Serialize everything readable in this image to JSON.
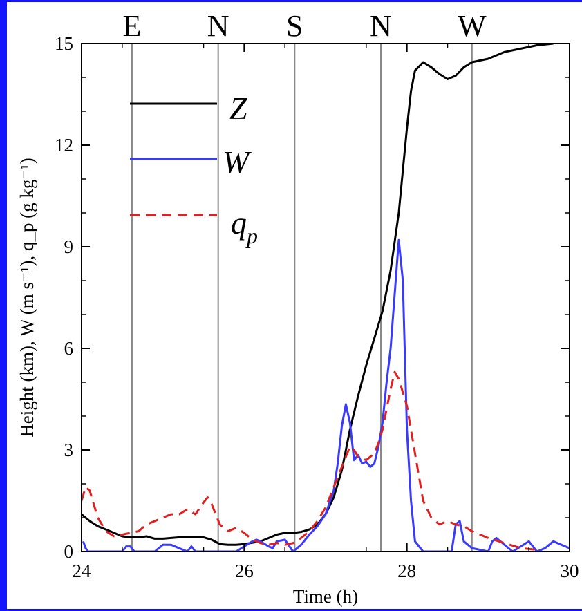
{
  "colors": {
    "frame": "#1414ff",
    "Z": "#000000",
    "W": "#3a3aff",
    "qp": "#e02020",
    "marker_lines": "#888888"
  },
  "chart_data": {
    "type": "line",
    "xlabel": "Time (h)",
    "ylabel": "Height (km), W (m s⁻¹), q_p (g kg⁻¹)",
    "xlim": [
      24,
      30
    ],
    "ylim": [
      0,
      15
    ],
    "xticks": [
      24,
      26,
      28,
      30
    ],
    "yticks": [
      0,
      3,
      6,
      9,
      12,
      15
    ],
    "grid": false,
    "legend_position": "top-left",
    "direction_markers": [
      {
        "label": "E",
        "x": 24.62
      },
      {
        "label": "N",
        "x": 25.68
      },
      {
        "label": "S",
        "x": 26.62
      },
      {
        "label": "N",
        "x": 27.68
      },
      {
        "label": "W",
        "x": 28.8
      }
    ],
    "series": [
      {
        "name": "Z",
        "style": "solid",
        "x": [
          24.0,
          24.1,
          24.2,
          24.3,
          24.4,
          24.5,
          24.6,
          24.7,
          24.8,
          24.9,
          25.0,
          25.2,
          25.4,
          25.5,
          25.6,
          25.7,
          25.8,
          25.9,
          26.0,
          26.2,
          26.4,
          26.5,
          26.6,
          26.7,
          26.8,
          26.9,
          27.0,
          27.1,
          27.2,
          27.3,
          27.4,
          27.5,
          27.6,
          27.7,
          27.8,
          27.9,
          28.0,
          28.05,
          28.1,
          28.2,
          28.3,
          28.4,
          28.5,
          28.6,
          28.7,
          28.8,
          29.0,
          29.2,
          29.4,
          29.6,
          29.8
        ],
        "values": [
          1.1,
          0.9,
          0.75,
          0.65,
          0.55,
          0.45,
          0.42,
          0.42,
          0.45,
          0.38,
          0.38,
          0.42,
          0.42,
          0.42,
          0.35,
          0.22,
          0.2,
          0.2,
          0.22,
          0.3,
          0.5,
          0.55,
          0.55,
          0.58,
          0.65,
          0.8,
          1.1,
          1.6,
          2.4,
          3.6,
          4.6,
          5.5,
          6.3,
          7.1,
          8.3,
          10.0,
          12.5,
          13.6,
          14.2,
          14.45,
          14.3,
          14.1,
          13.95,
          14.05,
          14.3,
          14.45,
          14.55,
          14.75,
          14.85,
          14.95,
          15.0
        ]
      },
      {
        "name": "W",
        "style": "solid",
        "x": [
          24.02,
          24.05,
          24.08,
          24.5,
          24.55,
          24.6,
          24.65,
          24.9,
          25.0,
          25.1,
          25.3,
          25.35,
          25.4,
          25.7,
          25.9,
          26.0,
          26.1,
          26.15,
          26.2,
          26.3,
          26.35,
          26.4,
          26.5,
          26.6,
          26.7,
          26.8,
          26.9,
          27.0,
          27.1,
          27.15,
          27.2,
          27.25,
          27.3,
          27.35,
          27.4,
          27.45,
          27.5,
          27.55,
          27.6,
          27.65,
          27.7,
          27.75,
          27.8,
          27.85,
          27.9,
          27.95,
          28.0,
          28.05,
          28.1,
          28.2,
          28.3,
          28.55,
          28.6,
          28.65,
          28.7,
          28.8,
          29.0,
          29.05,
          29.1,
          29.3,
          29.4,
          29.5,
          29.6,
          29.7,
          29.8,
          29.9,
          30.0
        ],
        "values": [
          0.3,
          0.1,
          0.0,
          0.0,
          0.15,
          0.15,
          0.0,
          0.0,
          0.2,
          0.2,
          0.0,
          0.15,
          0.0,
          0.0,
          0.0,
          0.15,
          0.3,
          0.35,
          0.3,
          0.15,
          0.1,
          0.3,
          0.35,
          0.0,
          0.2,
          0.5,
          0.75,
          1.1,
          1.8,
          2.6,
          3.7,
          4.35,
          3.8,
          2.7,
          2.85,
          2.6,
          2.65,
          2.5,
          2.6,
          3.1,
          3.8,
          5.0,
          6.0,
          7.6,
          9.2,
          8.0,
          3.6,
          1.5,
          0.3,
          0.0,
          0.0,
          0.0,
          0.8,
          0.9,
          0.3,
          0.1,
          0.0,
          0.3,
          0.4,
          0.0,
          0.15,
          0.3,
          0.0,
          0.1,
          0.3,
          0.2,
          0.1
        ]
      },
      {
        "name": "qp",
        "label": "q_p",
        "style": "dashed",
        "x": [
          24.0,
          24.05,
          24.1,
          24.15,
          24.2,
          24.3,
          24.4,
          24.5,
          24.6,
          24.7,
          24.8,
          24.9,
          25.0,
          25.1,
          25.2,
          25.3,
          25.4,
          25.5,
          25.55,
          25.6,
          25.65,
          25.7,
          25.8,
          25.9,
          26.0,
          26.1,
          26.2,
          26.3,
          26.4,
          26.5,
          26.6,
          26.7,
          26.8,
          26.9,
          27.0,
          27.1,
          27.2,
          27.3,
          27.35,
          27.4,
          27.5,
          27.6,
          27.65,
          27.7,
          27.8,
          27.85,
          27.9,
          28.0,
          28.1,
          28.2,
          28.3,
          28.4,
          28.5,
          28.6,
          28.7,
          28.8,
          29.0,
          29.2,
          29.4,
          29.6
        ],
        "values": [
          1.5,
          1.9,
          1.8,
          1.4,
          1.0,
          0.6,
          0.45,
          0.5,
          0.55,
          0.6,
          0.8,
          0.9,
          1.0,
          1.1,
          1.1,
          1.25,
          1.1,
          1.45,
          1.6,
          1.4,
          1.1,
          0.8,
          0.6,
          0.7,
          0.55,
          0.35,
          0.25,
          0.2,
          0.25,
          0.2,
          0.25,
          0.4,
          0.6,
          0.9,
          1.3,
          1.9,
          2.5,
          3.1,
          3.0,
          2.8,
          2.7,
          2.9,
          3.2,
          3.6,
          4.8,
          5.3,
          5.1,
          4.3,
          2.9,
          1.5,
          1.0,
          0.8,
          0.9,
          0.8,
          0.75,
          0.6,
          0.4,
          0.25,
          0.1,
          0.05
        ]
      }
    ]
  }
}
